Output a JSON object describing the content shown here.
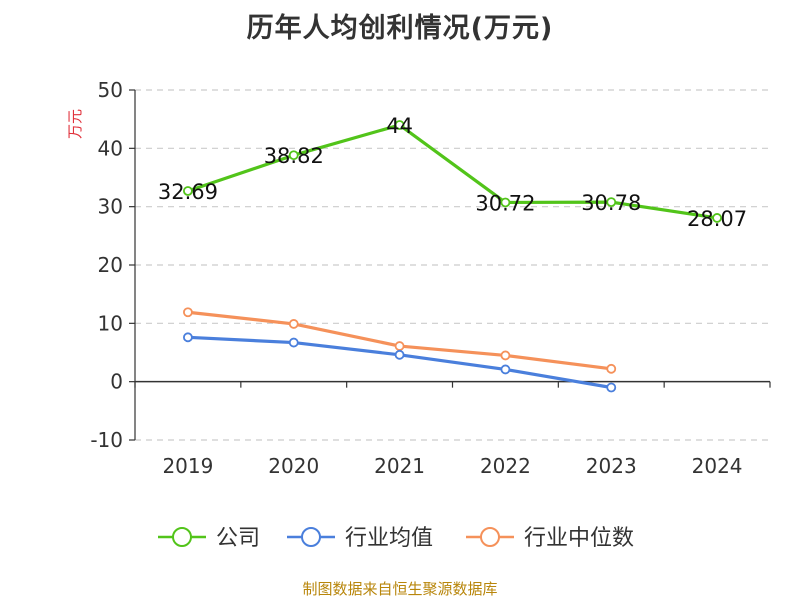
{
  "chart_data": {
    "type": "line",
    "title": "历年人均创利情况(万元)",
    "ylabel": "万元",
    "xlabel": "",
    "categories": [
      "2019",
      "2020",
      "2021",
      "2022",
      "2023",
      "2024"
    ],
    "ylim": [
      -10,
      50
    ],
    "yticks": [
      -10,
      0,
      10,
      20,
      30,
      40,
      50
    ],
    "grid": true,
    "legend_position": "bottom",
    "series": [
      {
        "name": "公司",
        "color": "#52c41a",
        "values": [
          32.69,
          38.82,
          44,
          30.72,
          30.78,
          28.07
        ],
        "labels": [
          "32.69",
          "38.82",
          "44",
          "30.72",
          "30.78",
          "28.07"
        ]
      },
      {
        "name": "行业均值",
        "color": "#4a7fdc",
        "values": [
          7.6,
          6.7,
          4.6,
          2.1,
          -1.0,
          null
        ]
      },
      {
        "name": "行业中位数",
        "color": "#f5915a",
        "values": [
          11.9,
          9.9,
          6.1,
          4.5,
          2.2,
          null
        ]
      }
    ]
  },
  "source": "制图数据来自恒生聚源数据库"
}
